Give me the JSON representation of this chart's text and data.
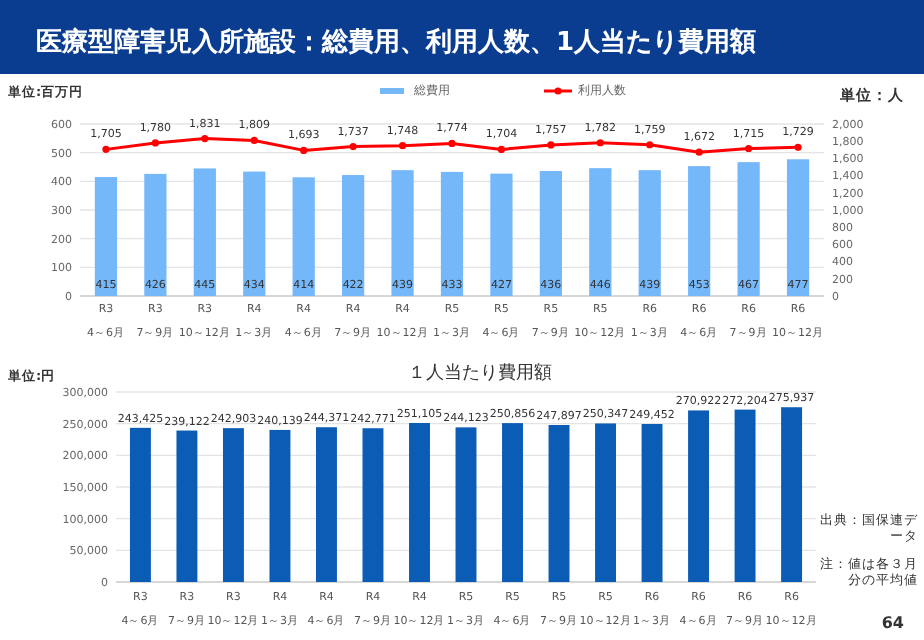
{
  "chart_data": [
    {
      "type": "bar",
      "title": "医療型障害児入所施設：総費用、利用人数、1人当たり費用額",
      "ylabel": "単位:百万円",
      "y2label": "単位：人",
      "categories": [
        "R3\n4～6月",
        "R3\n7～9月",
        "R3\n10～12月",
        "R4\n1～3月",
        "R4\n4～6月",
        "R4\n7～9月",
        "R4\n10～12月",
        "R5\n1～3月",
        "R5\n4～6月",
        "R5\n7～9月",
        "R5\n10～12月",
        "R6\n1～3月",
        "R6\n4～6月",
        "R6\n7～9月",
        "R6\n10～12月"
      ],
      "series": [
        {
          "name": "総費用",
          "color": "#75b8fa",
          "values": [
            415,
            426,
            445,
            434,
            414,
            422,
            439,
            433,
            427,
            436,
            446,
            439,
            453,
            467,
            477
          ],
          "value_labels": [
            "415",
            "426",
            "445",
            "434",
            "414",
            "422",
            "439",
            "433",
            "427",
            "436",
            "446",
            "439",
            "453",
            "467",
            "477"
          ]
        },
        {
          "name": "利用人数",
          "type": "line",
          "axis": "y2",
          "color": "#ff0000",
          "marker": "circle",
          "values": [
            1705,
            1780,
            1831,
            1809,
            1693,
            1737,
            1748,
            1774,
            1704,
            1757,
            1782,
            1759,
            1672,
            1715,
            1729
          ],
          "value_labels": [
            "1,705",
            "1,780",
            "1,831",
            "1,809",
            "1,693",
            "1,737",
            "1,748",
            "1,774",
            "1,704",
            "1,757",
            "1,782",
            "1,759",
            "1,672",
            "1,715",
            "1,729"
          ]
        }
      ],
      "ylim": [
        0,
        600
      ],
      "yticks": [
        0,
        100,
        200,
        300,
        400,
        500,
        600
      ],
      "y2lim": [
        0,
        2000
      ],
      "y2ticks": [
        0,
        200,
        400,
        600,
        800,
        {
          "value": 1000,
          "label": "1,000"
        },
        {
          "value": 1200,
          "label": "1,200"
        },
        {
          "value": 1400,
          "label": "1,400"
        },
        {
          "value": 1600,
          "label": "1,600"
        },
        {
          "value": 1800,
          "label": "1,800"
        },
        {
          "value": 2000,
          "label": "2,000"
        }
      ],
      "grid": "y",
      "legend": "top"
    },
    {
      "type": "bar",
      "title": "１人当たり費用額",
      "ylabel": "単位:円",
      "categories": [
        "R3\n4～6月",
        "R3\n7～9月",
        "R3\n10～12月",
        "R4\n1～3月",
        "R4\n4～6月",
        "R4\n7～9月",
        "R4\n10～12月",
        "R5\n1～3月",
        "R5\n4～6月",
        "R5\n7～9月",
        "R5\n10～12月",
        "R6\n1～3月",
        "R6\n4～6月",
        "R6\n7～9月",
        "R6\n10～12月"
      ],
      "values": [
        243425,
        239122,
        242903,
        240139,
        244371,
        242771,
        251105,
        244123,
        250856,
        247897,
        250347,
        249452,
        270922,
        272204,
        275937
      ],
      "color": "#0b5cb5",
      "value_labels": [
        "243,425",
        "239,122",
        "242,903",
        "240,139",
        "244,371",
        "242,771",
        "251,105",
        "244,123",
        "250,856",
        "247,897",
        "250,347",
        "249,452",
        "270,922",
        "272,204",
        "275,937"
      ],
      "ylim": [
        0,
        300000
      ],
      "yticks": [
        0,
        {
          "value": 50000,
          "label": "50,000"
        },
        {
          "value": 100000,
          "label": "100,000"
        },
        {
          "value": 150000,
          "label": "150,000"
        },
        {
          "value": 200000,
          "label": "200,000"
        },
        {
          "value": 250000,
          "label": "250,000"
        },
        {
          "value": 300000,
          "label": "300,000"
        }
      ],
      "grid": "y",
      "annotations": [
        "出典：国保連データ",
        "注：値は各３月分の平均値",
        "64"
      ]
    }
  ]
}
